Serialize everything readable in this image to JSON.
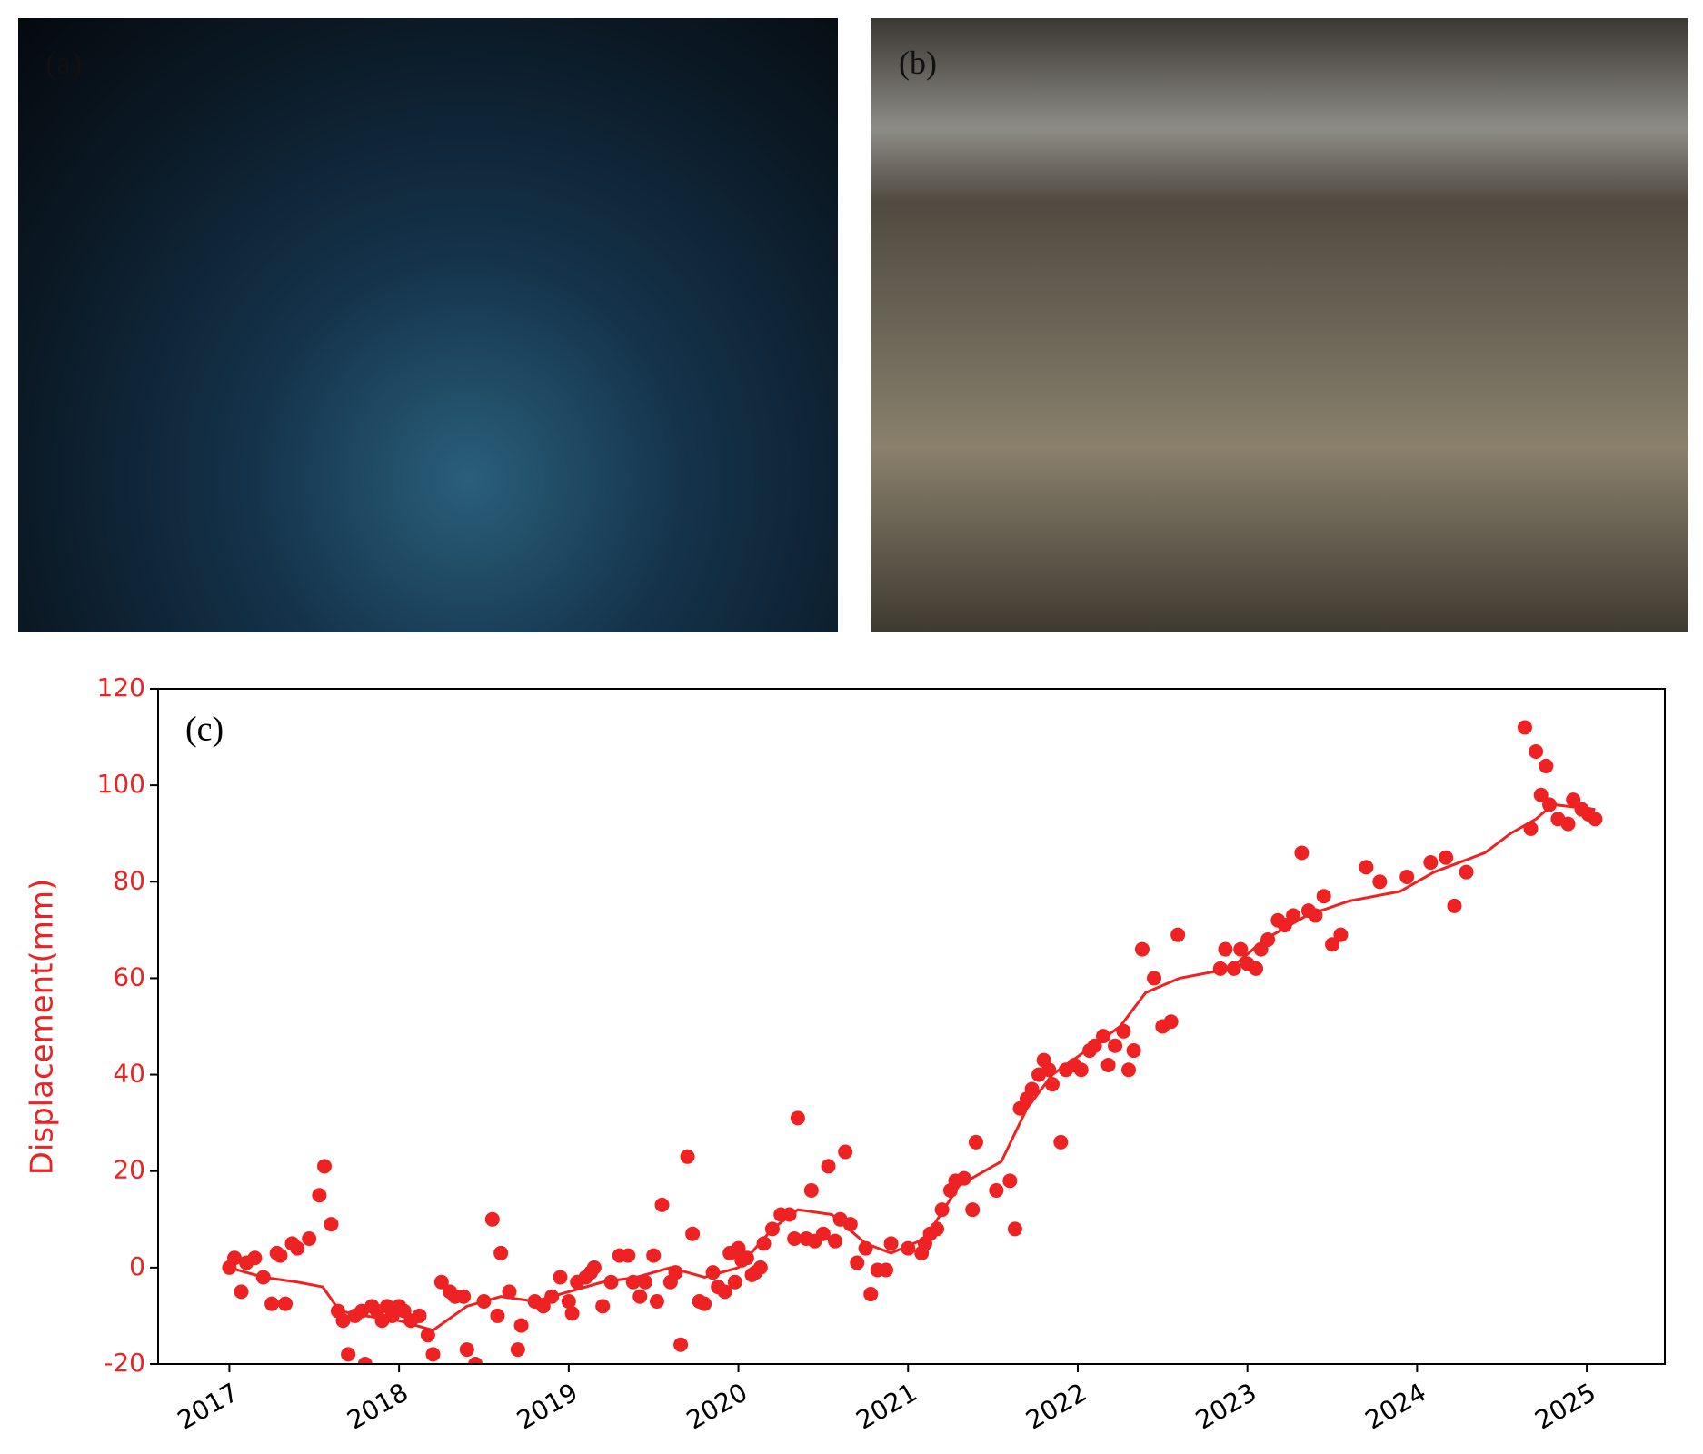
{
  "panels": [
    {
      "label": "(a)"
    },
    {
      "label": "(b)"
    }
  ],
  "chart_data": {
    "type": "scatter",
    "annotation": "(c)",
    "ylabel": "Displacement(mm)",
    "xlim": [
      2016.58,
      2025.46
    ],
    "xticks": [
      2017,
      2018,
      2019,
      2020,
      2021,
      2022,
      2023,
      2024,
      2025
    ],
    "ylim": [
      -20,
      120
    ],
    "yticks": [
      -20,
      0,
      20,
      40,
      60,
      80,
      100,
      120
    ],
    "ytick_color": "#ee2222",
    "series": [
      {
        "type": "scatter",
        "color": "#ee2222",
        "x": [
          2017.0,
          2017.03,
          2017.07,
          2017.1,
          2017.15,
          2017.2,
          2017.25,
          2017.28,
          2017.3,
          2017.33,
          2017.37,
          2017.4,
          2017.47,
          2017.53,
          2017.56,
          2017.6,
          2017.64,
          2017.67,
          2017.7,
          2017.74,
          2017.78,
          2017.8,
          2017.84,
          2017.87,
          2017.9,
          2017.93,
          2017.96,
          2018.0,
          2018.03,
          2018.07,
          2018.12,
          2018.17,
          2018.2,
          2018.25,
          2018.3,
          2018.33,
          2018.38,
          2018.4,
          2018.45,
          2018.5,
          2018.55,
          2018.58,
          2018.6,
          2018.65,
          2018.7,
          2018.72,
          2018.8,
          2018.85,
          2018.9,
          2018.95,
          2019.0,
          2019.02,
          2019.05,
          2019.1,
          2019.13,
          2019.15,
          2019.2,
          2019.25,
          2019.3,
          2019.35,
          2019.38,
          2019.42,
          2019.45,
          2019.5,
          2019.52,
          2019.55,
          2019.6,
          2019.63,
          2019.66,
          2019.7,
          2019.73,
          2019.77,
          2019.8,
          2019.85,
          2019.88,
          2019.92,
          2019.95,
          2019.98,
          2020.0,
          2020.02,
          2020.05,
          2020.08,
          2020.1,
          2020.13,
          2020.15,
          2020.2,
          2020.25,
          2020.3,
          2020.33,
          2020.35,
          2020.4,
          2020.43,
          2020.45,
          2020.5,
          2020.53,
          2020.57,
          2020.6,
          2020.63,
          2020.66,
          2020.7,
          2020.75,
          2020.78,
          2020.82,
          2020.87,
          2020.9,
          2021.0,
          2021.08,
          2021.1,
          2021.13,
          2021.17,
          2021.2,
          2021.25,
          2021.28,
          2021.33,
          2021.38,
          2021.4,
          2021.52,
          2021.6,
          2021.63,
          2021.66,
          2021.7,
          2021.73,
          2021.77,
          2021.8,
          2021.83,
          2021.85,
          2021.9,
          2021.93,
          2021.98,
          2022.02,
          2022.07,
          2022.1,
          2022.15,
          2022.18,
          2022.22,
          2022.27,
          2022.3,
          2022.33,
          2022.38,
          2022.45,
          2022.5,
          2022.55,
          2022.59,
          2022.84,
          2022.87,
          2022.92,
          2022.96,
          2023.0,
          2023.05,
          2023.08,
          2023.12,
          2023.18,
          2023.22,
          2023.27,
          2023.32,
          2023.36,
          2023.4,
          2023.45,
          2023.5,
          2023.55,
          2023.7,
          2023.78,
          2023.94,
          2024.08,
          2024.17,
          2024.22,
          2024.29,
          2024.635,
          2024.67,
          2024.7,
          2024.73,
          2024.76,
          2024.78,
          2024.83,
          2024.89,
          2024.92,
          2024.97,
          2025.01,
          2025.05
        ],
        "values": [
          0,
          2,
          -5,
          1,
          2,
          -2,
          -7.5,
          3,
          2.5,
          -7.5,
          5,
          4,
          6,
          15,
          21,
          9,
          -9,
          -11,
          -18,
          -10,
          -9,
          -20,
          -8,
          -9,
          -11,
          -8,
          -10,
          -8,
          -9,
          -11,
          -10,
          -14,
          -18,
          -3,
          -5,
          -6,
          -6,
          -17,
          -20,
          -7,
          10,
          -10,
          3,
          -5,
          -17,
          -12,
          -7,
          -8,
          -6,
          -2,
          -7,
          -9.5,
          -3,
          -2,
          -1,
          0,
          -8,
          -3,
          2.5,
          2.5,
          -3,
          -6,
          -3,
          2.5,
          -7,
          13,
          -3,
          -1,
          -16,
          23,
          7,
          -7,
          -7.5,
          -1,
          -4,
          -5,
          3,
          -3,
          4,
          1.5,
          2,
          -1.5,
          -1,
          0,
          5,
          8,
          11,
          11,
          6,
          31,
          6,
          16,
          5.5,
          7,
          21,
          5.5,
          10,
          24,
          9,
          1,
          4,
          -5.5,
          -0.5,
          -0.5,
          5,
          4,
          3,
          5,
          7,
          8,
          12,
          16,
          18,
          18.5,
          12,
          26,
          16,
          18,
          8,
          33,
          35,
          37,
          40,
          43,
          41,
          38,
          26,
          41,
          42,
          41,
          45,
          46,
          48,
          42,
          46,
          49,
          41,
          45,
          66,
          60,
          50,
          51,
          69,
          62,
          66,
          62,
          66,
          63,
          62,
          66,
          68,
          72,
          71,
          73,
          86,
          74,
          73,
          77,
          67,
          69,
          83,
          80,
          81,
          84,
          85,
          75,
          82,
          112,
          91,
          107,
          98,
          104,
          96,
          93,
          92,
          97,
          95,
          94,
          93
        ]
      },
      {
        "type": "line",
        "color": "#ee2222",
        "x": [
          2017.0,
          2017.2,
          2017.4,
          2017.55,
          2017.65,
          2017.8,
          2018.0,
          2018.2,
          2018.4,
          2018.6,
          2018.8,
          2019.0,
          2019.2,
          2019.4,
          2019.6,
          2019.8,
          2020.0,
          2020.2,
          2020.35,
          2020.55,
          2020.75,
          2020.9,
          2021.1,
          2021.3,
          2021.55,
          2021.7,
          2021.85,
          2022.05,
          2022.25,
          2022.4,
          2022.6,
          2022.9,
          2023.1,
          2023.35,
          2023.6,
          2023.9,
          2024.1,
          2024.4,
          2024.55,
          2024.7,
          2024.8,
          2025.05
        ],
        "values": [
          0,
          -2,
          -3,
          -4,
          -9,
          -10,
          -11,
          -13,
          -8,
          -6,
          -7,
          -5,
          -3,
          -2,
          0,
          -2,
          0,
          8,
          12,
          11,
          5,
          3,
          6,
          17,
          22,
          33,
          40,
          45,
          50,
          57,
          60,
          62,
          68,
          73,
          76,
          78,
          82,
          86,
          90,
          93,
          96,
          95
        ]
      }
    ]
  }
}
